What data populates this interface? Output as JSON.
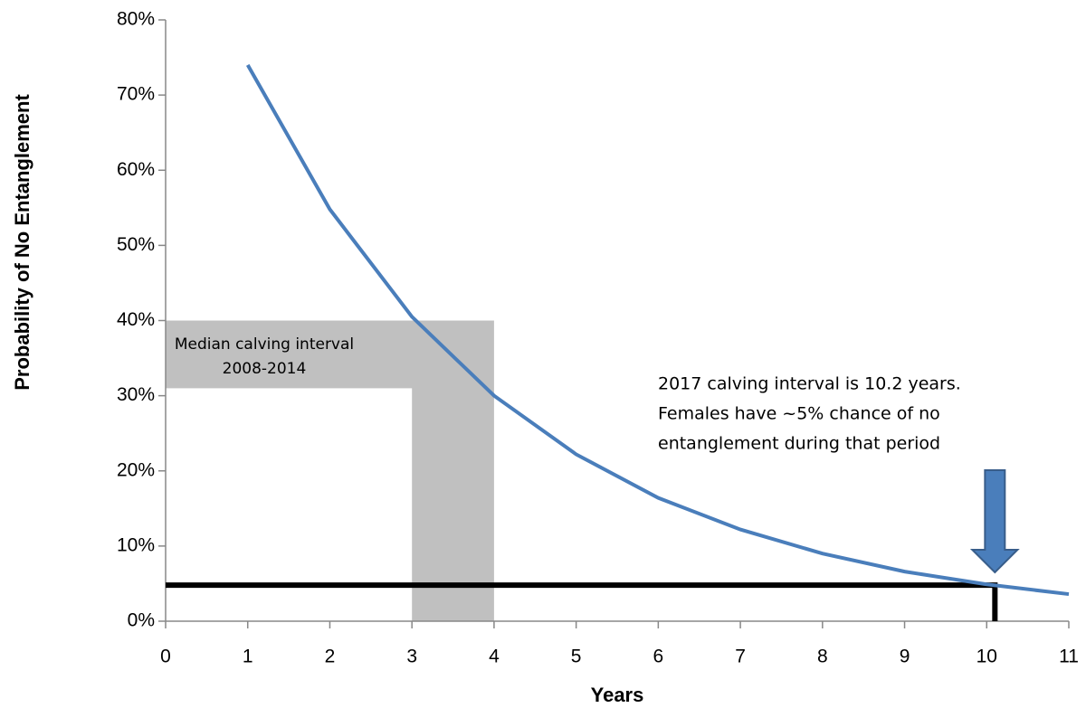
{
  "chart_data": {
    "type": "line",
    "x_label": "Years",
    "y_label": "Probability of No Entanglement",
    "x": [
      1,
      2,
      3,
      4,
      5,
      6,
      7,
      8,
      9,
      10,
      11
    ],
    "series": [
      {
        "color": "#4a7ebb",
        "values": [
          74,
          54.8,
          40.5,
          30,
          22.2,
          16.4,
          12.2,
          9.0,
          6.6,
          4.9,
          3.6
        ]
      }
    ],
    "xlim": [
      0,
      11
    ],
    "xticks": [
      0,
      1,
      2,
      3,
      4,
      5,
      6,
      7,
      8,
      9,
      10,
      11
    ],
    "ylim": [
      0,
      80
    ],
    "yticks": [
      {
        "value": 0,
        "label": "0%"
      },
      {
        "value": 10,
        "label": "10%"
      },
      {
        "value": 20,
        "label": "20%"
      },
      {
        "value": 30,
        "label": "30%"
      },
      {
        "value": 40,
        "label": "40%"
      },
      {
        "value": 50,
        "label": "50%"
      },
      {
        "value": 60,
        "label": "60%"
      },
      {
        "value": 70,
        "label": "70%"
      },
      {
        "value": 80,
        "label": "80%"
      }
    ],
    "shaded_x": [
      3,
      4
    ],
    "shaded_band_y": [
      31,
      40
    ],
    "shaded_color": "#c0c0c0",
    "marker": {
      "x": 10.1,
      "y": 4.8
    },
    "annotations": [
      {
        "lines": [
          "Median calving interval",
          "2008-2014"
        ]
      },
      {
        "lines": [
          "2017 calving interval is 10.2 years.",
          "Females have ~5% chance of no",
          "entanglement during that period"
        ]
      }
    ]
  }
}
